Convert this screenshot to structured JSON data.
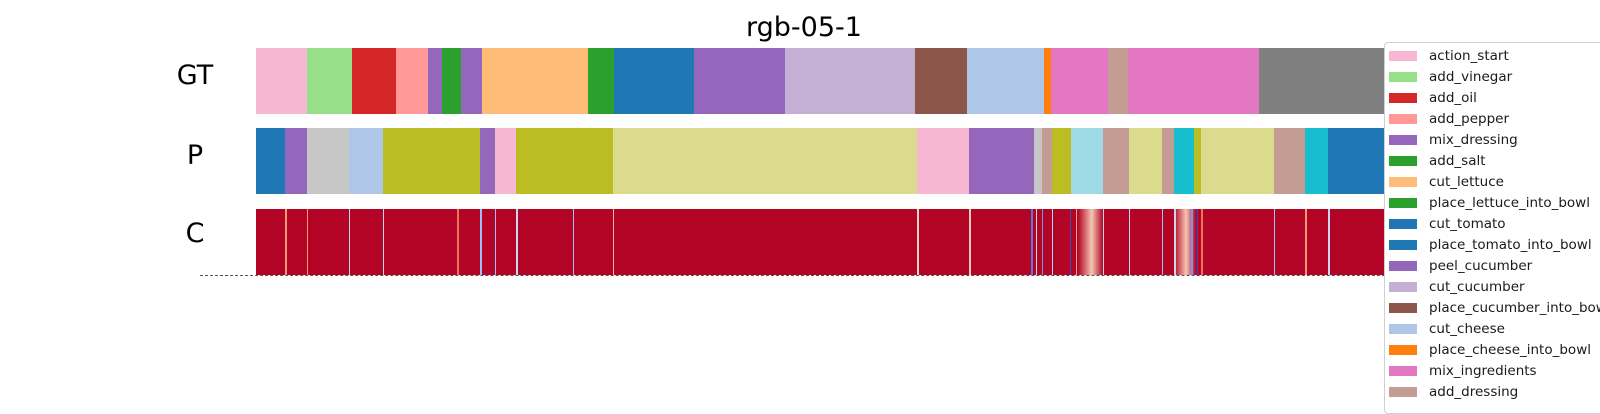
{
  "chart_data": {
    "type": "segmentation",
    "title": "rgb-05-1",
    "rows": [
      {
        "label": "GT",
        "segments": [
          {
            "start": 0.0,
            "end": 0.045,
            "class": "action_start"
          },
          {
            "start": 0.045,
            "end": 0.085,
            "class": "add_vinegar"
          },
          {
            "start": 0.085,
            "end": 0.124,
            "class": "add_oil"
          },
          {
            "start": 0.124,
            "end": 0.152,
            "class": "add_pepper"
          },
          {
            "start": 0.152,
            "end": 0.164,
            "class": "mix_dressing"
          },
          {
            "start": 0.164,
            "end": 0.181,
            "class": "add_salt"
          },
          {
            "start": 0.181,
            "end": 0.2,
            "class": "mix_dressing"
          },
          {
            "start": 0.2,
            "end": 0.293,
            "class": "cut_lettuce"
          },
          {
            "start": 0.293,
            "end": 0.316,
            "class": "place_lettuce_into_bowl"
          },
          {
            "start": 0.316,
            "end": 0.387,
            "class": "cut_tomato"
          },
          {
            "start": 0.387,
            "end": 0.467,
            "class": "peel_cucumber"
          },
          {
            "start": 0.467,
            "end": 0.582,
            "class": "cut_cucumber"
          },
          {
            "start": 0.582,
            "end": 0.628,
            "class": "place_cucumber_into_bowl"
          },
          {
            "start": 0.628,
            "end": 0.696,
            "class": "cut_cheese"
          },
          {
            "start": 0.696,
            "end": 0.702,
            "class": "place_cheese_into_bowl"
          },
          {
            "start": 0.702,
            "end": 0.753,
            "class": "mix_ingredients"
          },
          {
            "start": 0.753,
            "end": 0.77,
            "class": "add_dressing"
          },
          {
            "start": 0.77,
            "end": 0.886,
            "class": "mix_ingredients"
          },
          {
            "start": 0.886,
            "end": 1.0,
            "class": "gray"
          }
        ]
      },
      {
        "label": "P",
        "segments": [
          {
            "start": 0.0,
            "end": 0.026,
            "class": "cut_tomato"
          },
          {
            "start": 0.026,
            "end": 0.045,
            "class": "peel_cucumber"
          },
          {
            "start": 0.045,
            "end": 0.082,
            "class": "lightgray"
          },
          {
            "start": 0.082,
            "end": 0.112,
            "class": "cut_cheese"
          },
          {
            "start": 0.112,
            "end": 0.198,
            "class": "olive"
          },
          {
            "start": 0.198,
            "end": 0.211,
            "class": "peel_cucumber"
          },
          {
            "start": 0.211,
            "end": 0.23,
            "class": "action_start"
          },
          {
            "start": 0.23,
            "end": 0.315,
            "class": "olive"
          },
          {
            "start": 0.315,
            "end": 0.584,
            "class": "khaki"
          },
          {
            "start": 0.584,
            "end": 0.63,
            "class": "action_start"
          },
          {
            "start": 0.63,
            "end": 0.687,
            "class": "peel_cucumber"
          },
          {
            "start": 0.687,
            "end": 0.694,
            "class": "lightgray"
          },
          {
            "start": 0.694,
            "end": 0.703,
            "class": "add_dressing"
          },
          {
            "start": 0.703,
            "end": 0.72,
            "class": "olive"
          },
          {
            "start": 0.72,
            "end": 0.748,
            "class": "lightcyan"
          },
          {
            "start": 0.748,
            "end": 0.771,
            "class": "add_dressing"
          },
          {
            "start": 0.771,
            "end": 0.8,
            "class": "khaki"
          },
          {
            "start": 0.8,
            "end": 0.811,
            "class": "add_dressing"
          },
          {
            "start": 0.811,
            "end": 0.829,
            "class": "cyan"
          },
          {
            "start": 0.829,
            "end": 0.835,
            "class": "olive"
          },
          {
            "start": 0.835,
            "end": 0.899,
            "class": "khaki"
          },
          {
            "start": 0.899,
            "end": 0.927,
            "class": "add_dressing"
          },
          {
            "start": 0.927,
            "end": 0.947,
            "class": "cyan"
          },
          {
            "start": 0.947,
            "end": 1.0,
            "class": "cut_tomato"
          }
        ]
      },
      {
        "label": "C",
        "background": "#b40426",
        "dips": [
          {
            "pos": 0.026,
            "color": "#f4987a"
          },
          {
            "pos": 0.045,
            "color": "#f4987a"
          },
          {
            "pos": 0.082,
            "color": "#c9d7f0"
          },
          {
            "pos": 0.112,
            "color": "#c9d7f0"
          },
          {
            "pos": 0.178,
            "color": "#e8765c"
          },
          {
            "pos": 0.198,
            "color": "#9dbdff"
          },
          {
            "pos": 0.211,
            "color": "#9dbdff"
          },
          {
            "pos": 0.23,
            "color": "#c9d7f0"
          },
          {
            "pos": 0.28,
            "color": "#9dbdff"
          },
          {
            "pos": 0.315,
            "color": "#f7b89c"
          },
          {
            "pos": 0.584,
            "color": "#ecd3c5"
          },
          {
            "pos": 0.63,
            "color": "#f2cbb7"
          },
          {
            "pos": 0.685,
            "color": "#5977e3"
          },
          {
            "pos": 0.689,
            "color": "#dddcdc"
          },
          {
            "pos": 0.694,
            "color": "#7396f5"
          },
          {
            "pos": 0.703,
            "color": "#b9d0f9"
          },
          {
            "pos": 0.719,
            "color": "#3b4cc0"
          },
          {
            "pos": 0.724,
            "color": "#f6a385"
          },
          {
            "pos": 0.748,
            "color": "#c9d7f0"
          },
          {
            "pos": 0.771,
            "color": "#c9d7f0"
          },
          {
            "pos": 0.8,
            "color": "#9dbdff"
          },
          {
            "pos": 0.811,
            "color": "#c9d7f0"
          },
          {
            "pos": 0.826,
            "color": "#7396f5"
          },
          {
            "pos": 0.831,
            "color": "#3b4cc0"
          },
          {
            "pos": 0.835,
            "color": "#e8765c"
          },
          {
            "pos": 0.899,
            "color": "#9dbdff"
          },
          {
            "pos": 0.927,
            "color": "#f4987a"
          },
          {
            "pos": 0.947,
            "color": "#c9d7f0"
          }
        ],
        "gradients": [
          {
            "start": 0.726,
            "end": 0.748,
            "from": "#b40426",
            "to": "#f4c6b0"
          },
          {
            "start": 0.811,
            "end": 0.83,
            "from": "#b40426",
            "to": "#f4c6b0"
          }
        ]
      }
    ],
    "legend": [
      {
        "label": "action_start",
        "color": "#f7b6d2"
      },
      {
        "label": "add_vinegar",
        "color": "#98df8a"
      },
      {
        "label": "add_oil",
        "color": "#d62728"
      },
      {
        "label": "add_pepper",
        "color": "#ff9896"
      },
      {
        "label": "mix_dressing",
        "color": "#9467bd"
      },
      {
        "label": "add_salt",
        "color": "#2ca02c"
      },
      {
        "label": "cut_lettuce",
        "color": "#ffbb78"
      },
      {
        "label": "place_lettuce_into_bowl",
        "color": "#2ca02c"
      },
      {
        "label": "cut_tomato",
        "color": "#1f77b4"
      },
      {
        "label": "place_tomato_into_bowl",
        "color": "#1f77b4"
      },
      {
        "label": "peel_cucumber",
        "color": "#9467bd"
      },
      {
        "label": "cut_cucumber",
        "color": "#c5b0d5"
      },
      {
        "label": "place_cucumber_into_bowl",
        "color": "#8c564b"
      },
      {
        "label": "cut_cheese",
        "color": "#aec7e8"
      },
      {
        "label": "place_cheese_into_bowl",
        "color": "#ff7f0e"
      },
      {
        "label": "mix_ingredients",
        "color": "#e377c2"
      },
      {
        "label": "add_dressing",
        "color": "#c49c94"
      }
    ],
    "extra_colors": {
      "gray": "#7f7f7f",
      "lightgray": "#c7c7c7",
      "olive": "#bcbd22",
      "khaki": "#dbdb8d",
      "lightcyan": "#9edae5",
      "cyan": "#17becf"
    },
    "legend_placement": "right"
  }
}
